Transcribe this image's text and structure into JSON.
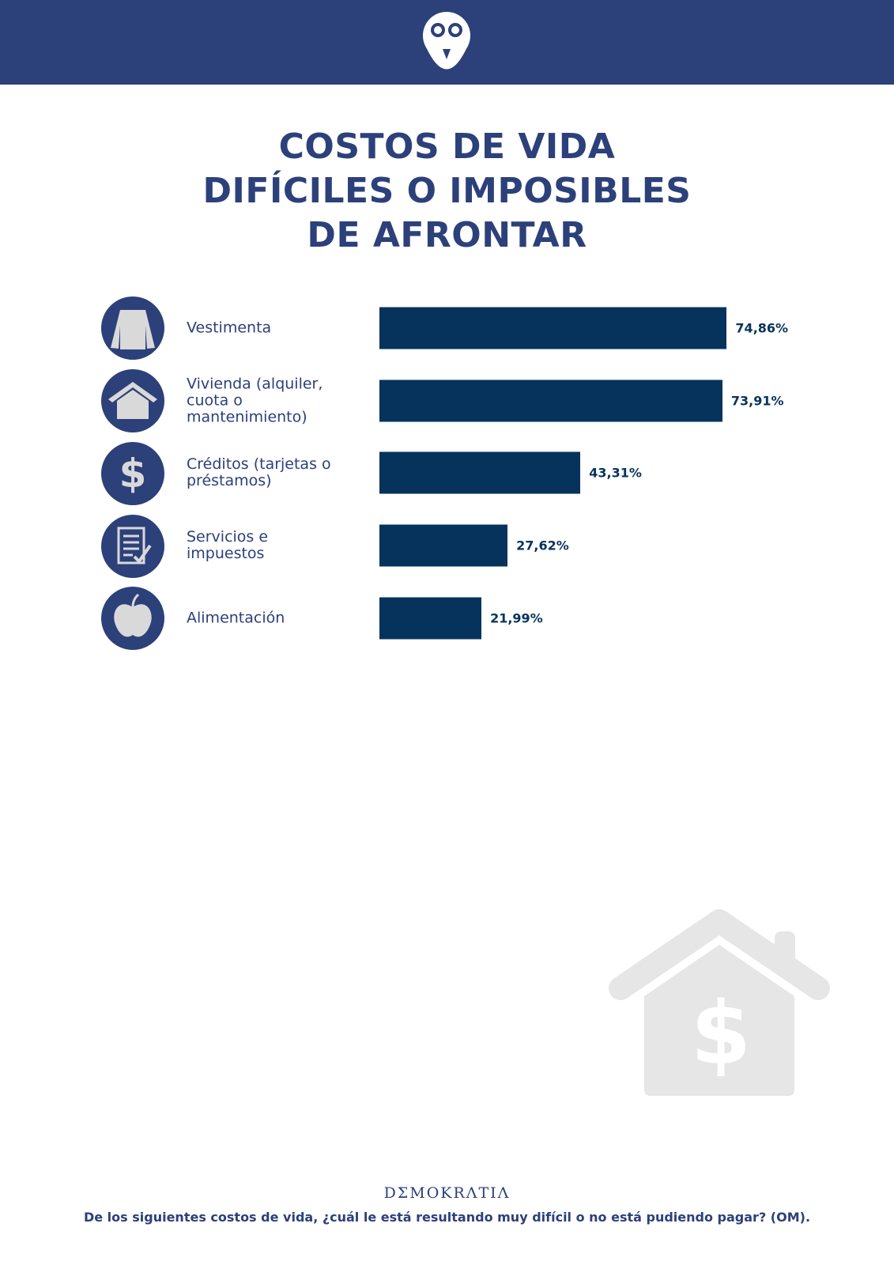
{
  "chart_data": {
    "type": "bar",
    "title": "COSTOS DE VIDA DIFÍCILES O IMPOSIBLES DE AFRONTAR",
    "categories": [
      "Vestimenta",
      "Vivienda (alquiler, cuota o mantenimiento)",
      "Créditos (tarjetas o préstamos)",
      "Servicios e impuestos",
      "Alimentación"
    ],
    "values": [
      74.86,
      73.91,
      43.31,
      27.62,
      21.99
    ],
    "value_labels": [
      "74,86%",
      "73,91%",
      "43,31%",
      "27,62%",
      "21,99%"
    ],
    "color": "#06335c",
    "brand": "DΣMOKRΛTIΛ",
    "footnote": "De los siguientes costos de vida, ¿cuál le está resultando muy difícil o no está pudiendo pagar? (OM)."
  }
}
